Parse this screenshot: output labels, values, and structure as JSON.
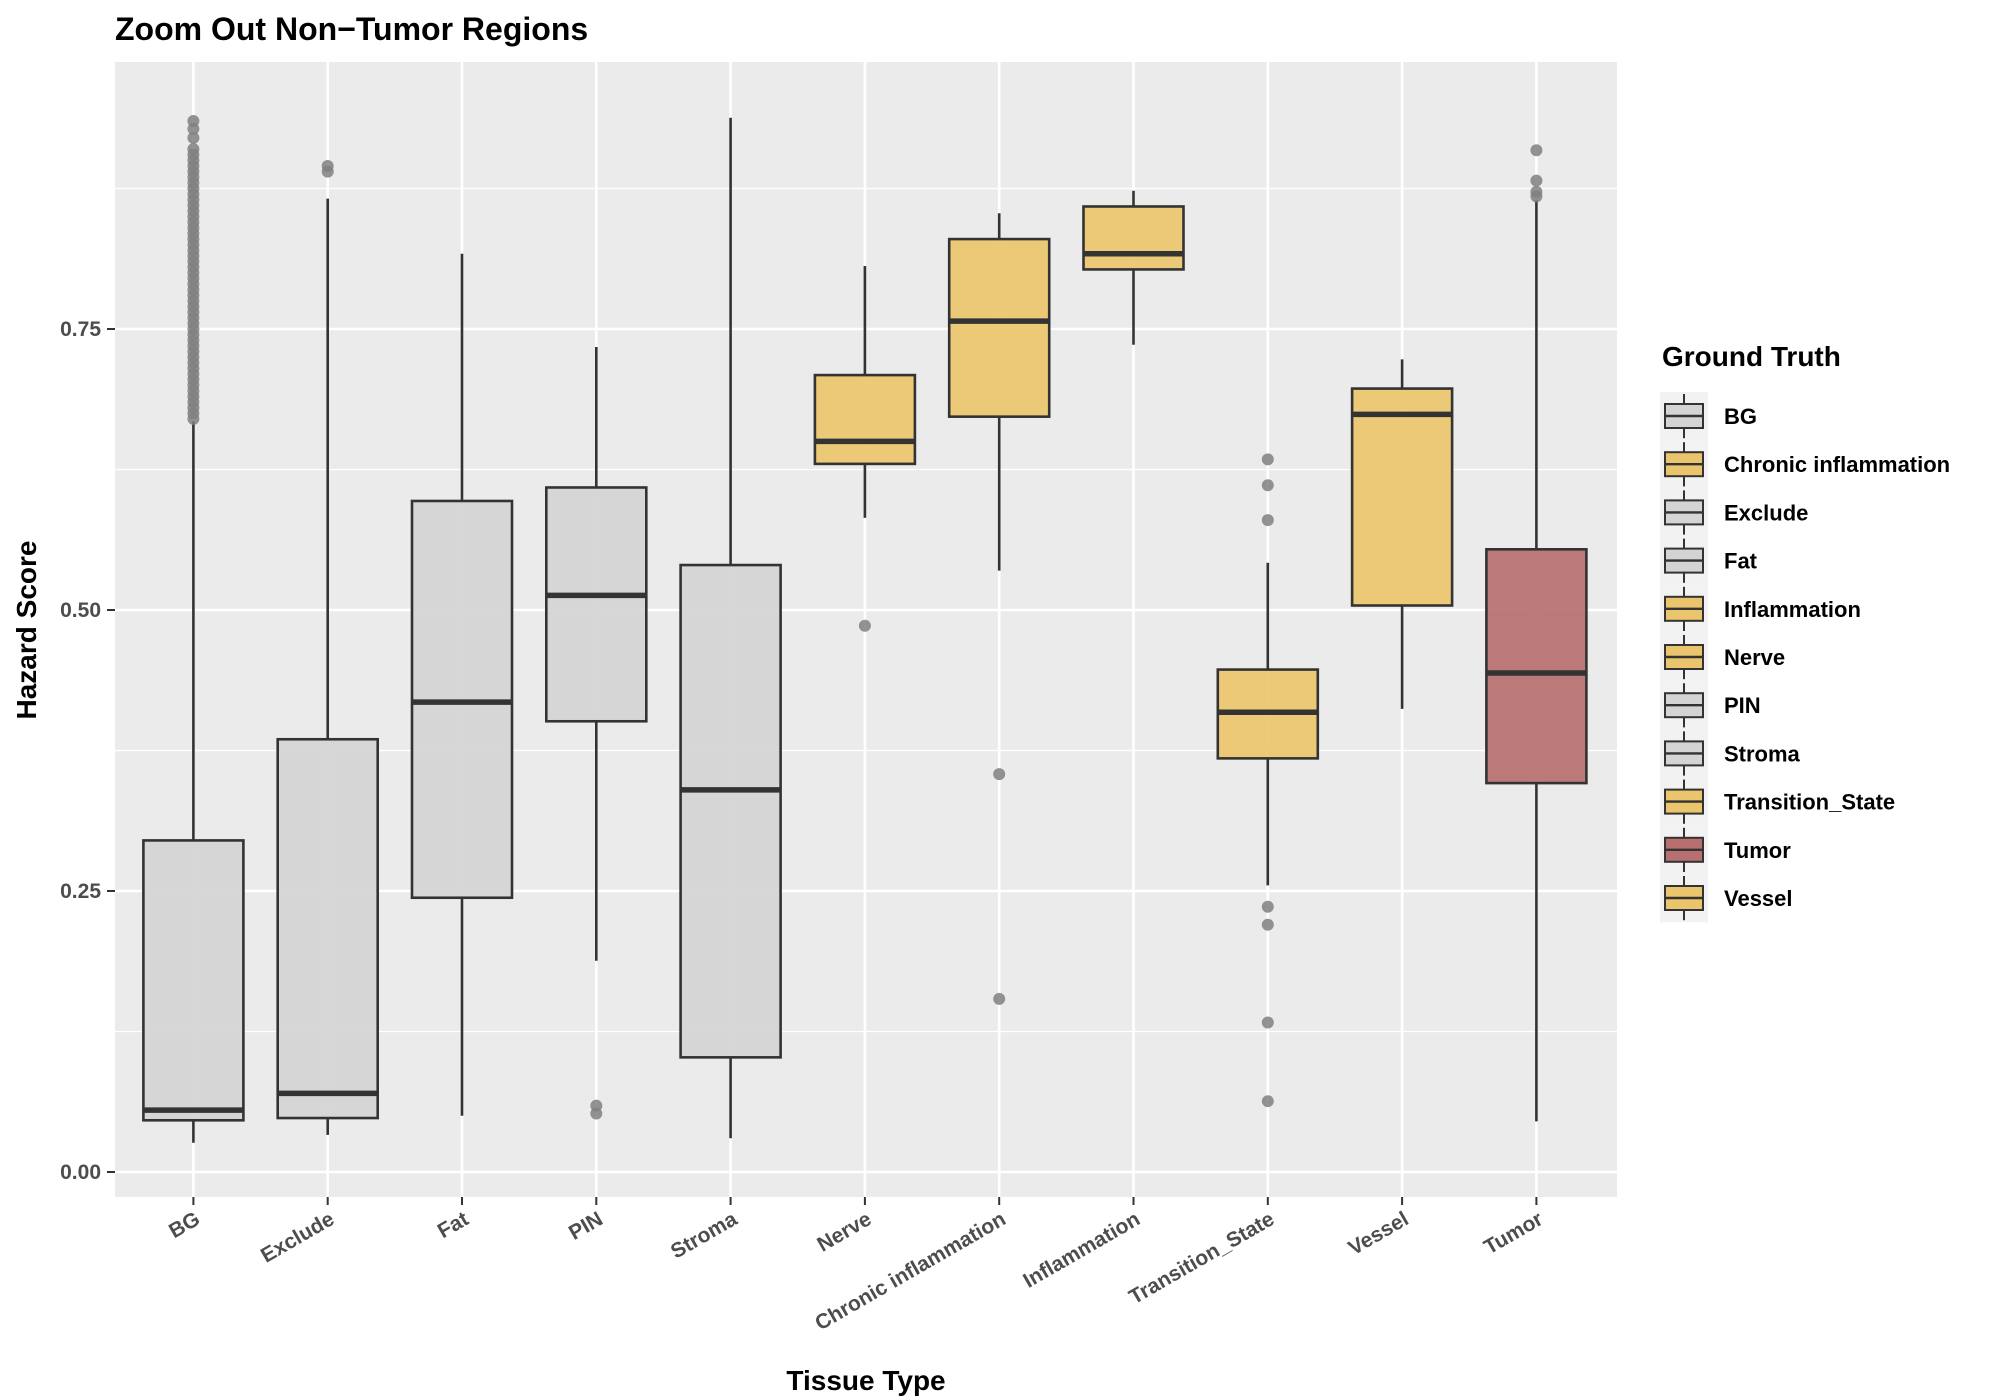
{
  "chart_data": {
    "type": "box",
    "title": "Zoom Out Non−Tumor Regions",
    "xlabel": "Tissue Type",
    "ylabel": "Hazard Score",
    "ylim": [
      -0.02,
      0.96
    ],
    "yticks": [
      0.0,
      0.25,
      0.5,
      0.75
    ],
    "ytick_labels": [
      "0.00",
      "0.25",
      "0.50",
      "0.75"
    ],
    "grid": true,
    "legend_title": "Ground Truth",
    "legend_position": "right",
    "colors": {
      "gray": "#d4d4d4",
      "gold": "#ebc56d",
      "red": "#b76f70",
      "panel": "#ebebeb",
      "outline": "#333333",
      "outlier": "#808080"
    },
    "legend": [
      {
        "label": "BG",
        "color": "gray"
      },
      {
        "label": "Chronic inflammation",
        "color": "gold"
      },
      {
        "label": "Exclude",
        "color": "gray"
      },
      {
        "label": "Fat",
        "color": "gray"
      },
      {
        "label": "Inflammation",
        "color": "gold"
      },
      {
        "label": "Nerve",
        "color": "gold"
      },
      {
        "label": "PIN",
        "color": "gray"
      },
      {
        "label": "Stroma",
        "color": "gray"
      },
      {
        "label": "Transition_State",
        "color": "gold"
      },
      {
        "label": "Tumor",
        "color": "red"
      },
      {
        "label": "Vessel",
        "color": "gold"
      }
    ],
    "categories": [
      "BG",
      "Exclude",
      "Fat",
      "PIN",
      "Stroma",
      "Nerve",
      "Chronic inflammation",
      "Inflammation",
      "Transition_State",
      "Vessel",
      "Tumor"
    ],
    "boxes": [
      {
        "category": "BG",
        "color": "gray",
        "whisker_low": 0.026,
        "q1": 0.046,
        "median": 0.055,
        "q3": 0.295,
        "whisker_high": 0.668,
        "outliers": [
          0.67,
          0.675,
          0.68,
          0.685,
          0.69,
          0.695,
          0.7,
          0.705,
          0.71,
          0.715,
          0.72,
          0.725,
          0.73,
          0.735,
          0.74,
          0.745,
          0.75,
          0.755,
          0.76,
          0.765,
          0.77,
          0.775,
          0.78,
          0.785,
          0.79,
          0.795,
          0.8,
          0.805,
          0.81,
          0.815,
          0.82,
          0.825,
          0.83,
          0.835,
          0.84,
          0.845,
          0.85,
          0.855,
          0.86,
          0.865,
          0.87,
          0.875,
          0.88,
          0.885,
          0.89,
          0.895,
          0.9,
          0.905,
          0.91,
          0.92,
          0.928,
          0.935
        ]
      },
      {
        "category": "Exclude",
        "color": "gray",
        "whisker_low": 0.033,
        "q1": 0.048,
        "median": 0.07,
        "q3": 0.385,
        "whisker_high": 0.866,
        "outliers": [
          0.89,
          0.895
        ]
      },
      {
        "category": "Fat",
        "color": "gray",
        "whisker_low": 0.05,
        "q1": 0.244,
        "median": 0.418,
        "q3": 0.597,
        "whisker_high": 0.817,
        "outliers": []
      },
      {
        "category": "PIN",
        "color": "gray",
        "whisker_low": 0.188,
        "q1": 0.401,
        "median": 0.513,
        "q3": 0.609,
        "whisker_high": 0.734,
        "outliers": [
          0.052,
          0.059
        ]
      },
      {
        "category": "Stroma",
        "color": "gray",
        "whisker_low": 0.03,
        "q1": 0.102,
        "median": 0.34,
        "q3": 0.54,
        "whisker_high": 0.938,
        "outliers": []
      },
      {
        "category": "Nerve",
        "color": "gold",
        "whisker_low": 0.582,
        "q1": 0.63,
        "median": 0.65,
        "q3": 0.709,
        "whisker_high": 0.806,
        "outliers": [
          0.486
        ]
      },
      {
        "category": "Chronic inflammation",
        "color": "gold",
        "whisker_low": 0.535,
        "q1": 0.672,
        "median": 0.757,
        "q3": 0.83,
        "whisker_high": 0.853,
        "outliers": [
          0.354,
          0.154
        ]
      },
      {
        "category": "Inflammation",
        "color": "gold",
        "whisker_low": 0.736,
        "q1": 0.803,
        "median": 0.817,
        "q3": 0.859,
        "whisker_high": 0.873,
        "outliers": []
      },
      {
        "category": "Transition_State",
        "color": "gold",
        "whisker_low": 0.255,
        "q1": 0.368,
        "median": 0.409,
        "q3": 0.447,
        "whisker_high": 0.542,
        "outliers": [
          0.634,
          0.611,
          0.58,
          0.236,
          0.22,
          0.133,
          0.063
        ]
      },
      {
        "category": "Vessel",
        "color": "gold",
        "whisker_low": 0.412,
        "q1": 0.504,
        "median": 0.674,
        "q3": 0.697,
        "whisker_high": 0.723,
        "outliers": []
      },
      {
        "category": "Tumor",
        "color": "red",
        "whisker_low": 0.045,
        "q1": 0.346,
        "median": 0.444,
        "q3": 0.554,
        "whisker_high": 0.865,
        "outliers": [
          0.868,
          0.872,
          0.882,
          0.909
        ]
      }
    ]
  }
}
